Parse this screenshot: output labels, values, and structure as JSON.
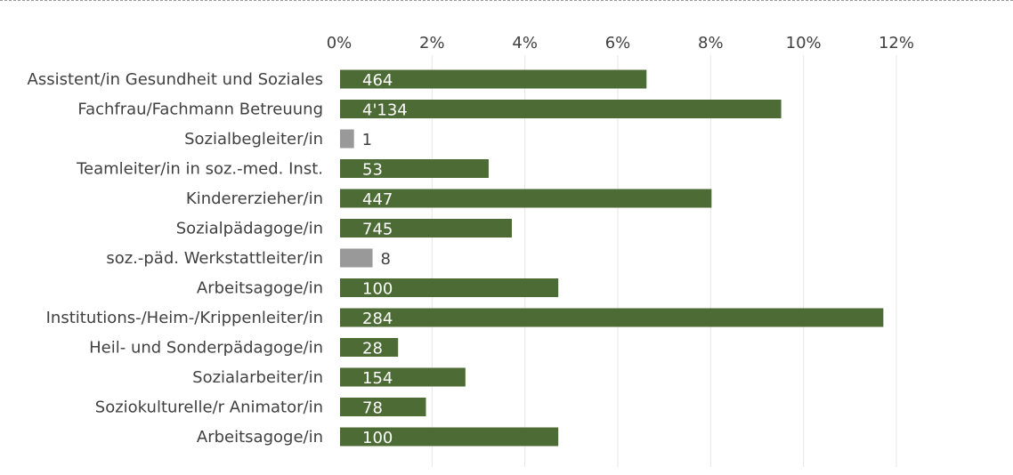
{
  "chart_data": {
    "type": "bar",
    "orientation": "horizontal",
    "categories": [
      "Assistent/in Gesundheit und Soziales",
      "Fachfrau/Fachmann Betreuung",
      "Sozialbegleiter/in",
      "Teamleiter/in in soz.-med. Inst.",
      "Kindererzieher/in",
      "Sozialpädagoge/in",
      "soz.-päd. Werkstattleiter/in",
      "Arbeitsagoge/in",
      "Institutions-/Heim-/Krippenleiter/in",
      "Heil- und Sonderpädagoge/in",
      "Sozialarbeiter/in",
      "Soziokulturelle/r Animator/in",
      "Arbeitsagoge/in"
    ],
    "values": [
      6.6,
      9.5,
      0.3,
      3.2,
      8.0,
      3.7,
      0.7,
      4.7,
      11.7,
      1.25,
      2.7,
      1.85,
      4.7
    ],
    "data_labels": [
      "464",
      "4'134",
      "1",
      "53",
      "447",
      "745",
      "8",
      "100",
      "284",
      "28",
      "154",
      "78",
      "100"
    ],
    "highlight": [
      false,
      false,
      true,
      false,
      false,
      false,
      true,
      false,
      false,
      false,
      false,
      false,
      false
    ],
    "xlim": [
      0,
      12
    ],
    "ticks": [
      "0%",
      "2%",
      "4%",
      "6%",
      "8%",
      "10%",
      "12%"
    ],
    "tick_values": [
      0,
      2,
      4,
      6,
      8,
      10,
      12
    ],
    "axis_position": "top",
    "grid": true,
    "title": "",
    "xlabel": "",
    "ylabel": "",
    "colors": {
      "bar": "#4d6b35",
      "highlight_bar": "#999999",
      "label_inside": "#ffffff",
      "label_outside": "#404040",
      "grid": "#e6e6e6",
      "text": "#404040"
    }
  }
}
